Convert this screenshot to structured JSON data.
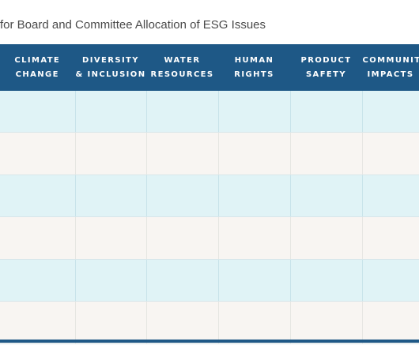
{
  "title": "for Board and Committee Allocation of ESG Issues",
  "columns": [
    {
      "line1": "Climate",
      "line2": "Change"
    },
    {
      "line1": "Diversity",
      "line2": "& Inclusion"
    },
    {
      "line1": "Water",
      "line2": "Resources"
    },
    {
      "line1": "Human",
      "line2": "Rights"
    },
    {
      "line1": "Product",
      "line2": "Safety"
    },
    {
      "line1": "Communit",
      "line2": "Impacts"
    }
  ],
  "row_count": 6,
  "colors": {
    "header": "#1e5886",
    "row_blue": "#e0f3f6",
    "row_cream": "#f8f5f2"
  }
}
